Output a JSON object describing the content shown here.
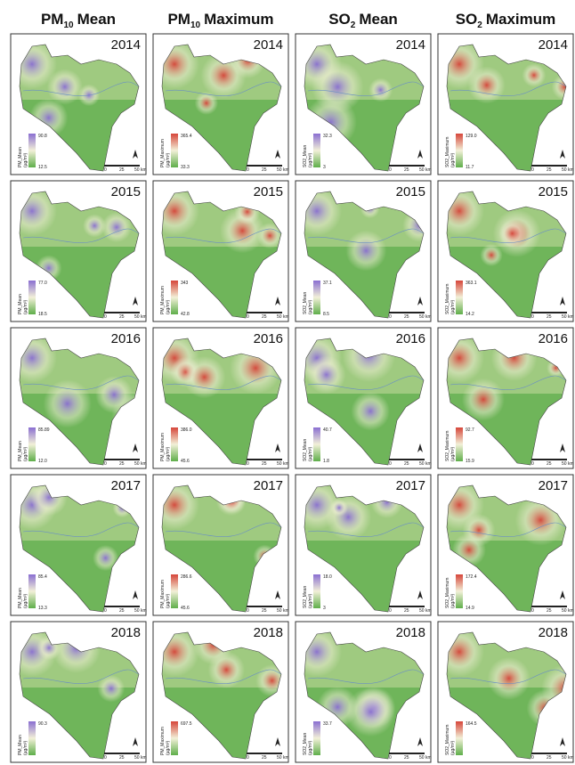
{
  "unit": "(µg/m³)",
  "scale": {
    "labels": [
      "0",
      "25",
      "50 km"
    ]
  },
  "columns": [
    {
      "base": "PM",
      "sub": "10",
      "rest": "Mean",
      "legend_label": "PM_Mean",
      "high_color": "#8a6fd1",
      "low_color": "#5fae4a"
    },
    {
      "base": "PM",
      "sub": "10",
      "rest": "Maximum",
      "legend_label": "PM_Maximum",
      "high_color": "#d6453a",
      "low_color": "#5fae4a"
    },
    {
      "base": "SO",
      "sub": "2",
      "rest": "Mean",
      "legend_label": "SO2_Mean",
      "high_color": "#8a6fd1",
      "low_color": "#5fae4a"
    },
    {
      "base": "SO",
      "sub": "2",
      "rest": "Maximum",
      "legend_label": "SO2_Maximum",
      "high_color": "#d6453a",
      "low_color": "#5fae4a"
    }
  ],
  "rows": [
    {
      "year": "2014",
      "panels": [
        {
          "max": "90.8",
          "min": "12.5"
        },
        {
          "max": "365.4",
          "min": "33.3"
        },
        {
          "max": "32.3",
          "min": "3"
        },
        {
          "max": "129.0",
          "min": "11.7"
        }
      ]
    },
    {
      "year": "2015",
      "panels": [
        {
          "max": "77.0",
          "min": "18.5"
        },
        {
          "max": "343",
          "min": "42.8"
        },
        {
          "max": "37.1",
          "min": "8.5"
        },
        {
          "max": "363.1",
          "min": "14.2"
        }
      ]
    },
    {
      "year": "2016",
      "panels": [
        {
          "max": "85.89",
          "min": "12.0"
        },
        {
          "max": "386.0",
          "min": "45.6"
        },
        {
          "max": "40.7",
          "min": "1.8"
        },
        {
          "max": "92.7",
          "min": "15.9"
        }
      ]
    },
    {
      "year": "2017",
      "panels": [
        {
          "max": "85.4",
          "min": "13.3"
        },
        {
          "max": "286.6",
          "min": "45.6"
        },
        {
          "max": "18.0",
          "min": "3"
        },
        {
          "max": "172.4",
          "min": "14.9"
        }
      ]
    },
    {
      "year": "2018",
      "panels": [
        {
          "max": "90.3"
        },
        {
          "max": "697.5"
        },
        {
          "max": "33.7"
        },
        {
          "max": "164.5"
        }
      ]
    }
  ]
}
